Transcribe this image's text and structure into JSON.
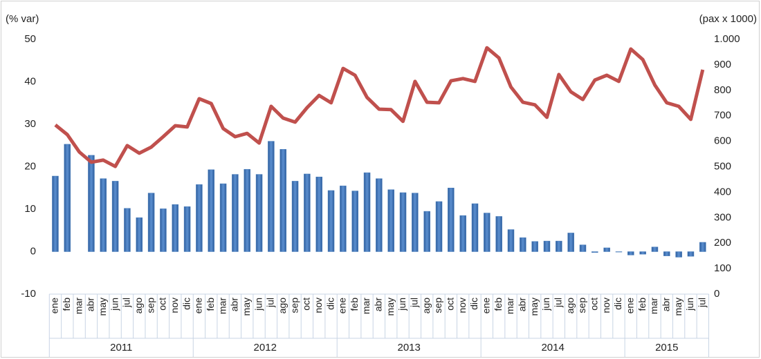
{
  "chart_data": {
    "type": "bar_line",
    "y_label": "(% var)",
    "y2_label": "(pax x 1000)",
    "category_groups": [
      {
        "label": "2011",
        "categories": [
          "ene",
          "feb",
          "mar",
          "abr",
          "may",
          "jun",
          "jul",
          "ago",
          "sep",
          "oct",
          "nov",
          "dic"
        ]
      },
      {
        "label": "2012",
        "categories": [
          "ene",
          "feb",
          "mar",
          "abr",
          "may",
          "jun",
          "jul",
          "ago",
          "sep",
          "oct",
          "nov",
          "dic"
        ]
      },
      {
        "label": "2013",
        "categories": [
          "ene",
          "feb",
          "mar",
          "abr",
          "may",
          "jun",
          "jul",
          "ago",
          "sep",
          "oct",
          "nov",
          "dic"
        ]
      },
      {
        "label": "2014",
        "categories": [
          "ene",
          "feb",
          "mar",
          "abr",
          "may",
          "jun",
          "jul",
          "ago",
          "sep",
          "oct",
          "nov",
          "dic"
        ]
      },
      {
        "label": "2015",
        "categories": [
          "ene",
          "feb",
          "mar",
          "abr",
          "may",
          "jun",
          "jul"
        ]
      }
    ],
    "series": [
      {
        "type": "bar",
        "axis": "y",
        "color": "#4a7ebb",
        "values": [
          17.8,
          25.3,
          null,
          22.7,
          17.2,
          16.6,
          10.2,
          8.0,
          13.8,
          10.1,
          11.1,
          10.6,
          15.8,
          19.3,
          16.0,
          18.2,
          19.4,
          18.2,
          26.0,
          24.1,
          16.6,
          18.3,
          17.6,
          14.4,
          15.5,
          14.3,
          18.6,
          17.2,
          14.6,
          13.9,
          13.8,
          9.5,
          11.8,
          15.0,
          8.5,
          11.3,
          9.1,
          8.3,
          5.2,
          3.3,
          2.4,
          2.5,
          2.5,
          4.4,
          1.6,
          -0.2,
          0.9,
          -0.1,
          -0.8,
          -0.6,
          1.1,
          -1.0,
          -1.3,
          -1.1,
          2.2
        ]
      },
      {
        "type": "line",
        "axis": "y2",
        "color": "#c0504d",
        "values": [
          664,
          626,
          558,
          518,
          526,
          501,
          583,
          553,
          577,
          618,
          661,
          656,
          767,
          748,
          650,
          618,
          631,
          593,
          737,
          691,
          675,
          732,
          780,
          751,
          886,
          859,
          772,
          726,
          724,
          678,
          835,
          753,
          751,
          837,
          846,
          835,
          967,
          927,
          813,
          753,
          743,
          694,
          862,
          794,
          764,
          840,
          859,
          835,
          962,
          921,
          821,
          751,
          737,
          686,
          881
        ]
      }
    ],
    "ylim": [
      -10,
      50
    ],
    "yticks": [
      -10,
      0,
      10,
      20,
      30,
      40,
      50
    ],
    "y2lim": [
      0,
      1000
    ],
    "y2ticks": [
      0,
      100,
      200,
      300,
      400,
      500,
      600,
      700,
      800,
      900,
      {
        "value": 1000,
        "label": "1.000"
      }
    ],
    "grid": false
  }
}
